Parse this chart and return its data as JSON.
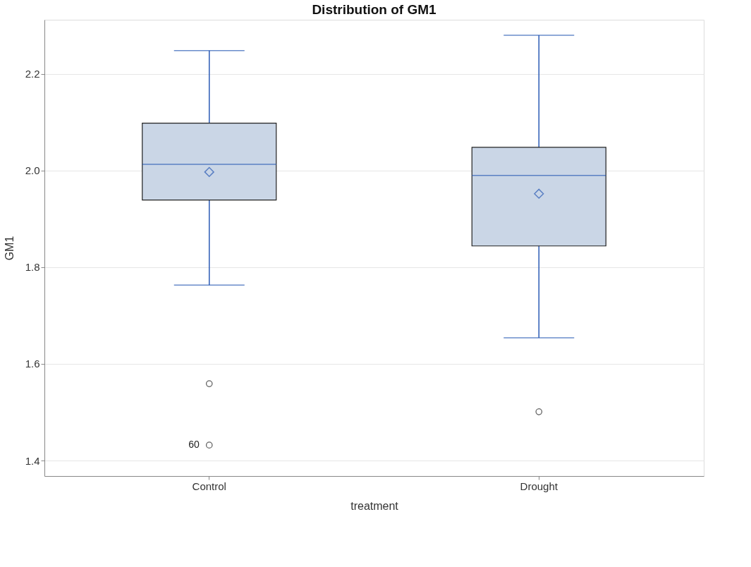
{
  "chart_data": {
    "type": "box",
    "title": "Distribution of GM1",
    "xlabel": "treatment",
    "ylabel": "GM1",
    "categories": [
      "Control",
      "Drought"
    ],
    "series": [
      {
        "color": "#cad6e6",
        "boxes": [
          {
            "low": 1.763,
            "q1": 1.939,
            "median": 2.013,
            "q3": 2.098,
            "high": 2.248,
            "mean": 1.997,
            "outliers": [
              1.559,
              1.432
            ]
          },
          {
            "low": 1.654,
            "q1": 1.844,
            "median": 1.99,
            "q3": 2.048,
            "high": 2.28,
            "mean": 1.952,
            "outliers": [
              1.501
            ]
          }
        ]
      }
    ],
    "ylim": [
      1.368,
      2.312
    ],
    "yticks": [
      {
        "value": 1.4,
        "label": "1.4"
      },
      {
        "value": 1.6,
        "label": "1.6"
      },
      {
        "value": 1.8,
        "label": "1.8"
      },
      {
        "value": 2,
        "label": "2.0"
      },
      {
        "value": 2.2,
        "label": "2.2"
      }
    ],
    "grid": "y",
    "annotations": [
      "60"
    ]
  }
}
